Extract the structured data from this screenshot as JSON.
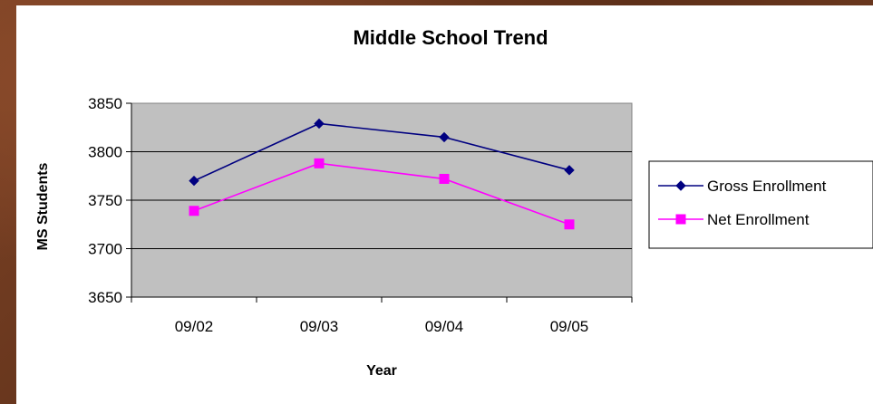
{
  "chart_data": {
    "type": "line",
    "title": "Middle School Trend",
    "xlabel": "Year",
    "ylabel": "MS Students",
    "categories": [
      "09/02",
      "09/03",
      "09/04",
      "09/05"
    ],
    "ylim": [
      3650,
      3850
    ],
    "yticks": [
      3650,
      3700,
      3750,
      3800,
      3850
    ],
    "grid": true,
    "legend_position": "right",
    "plot_background": "#c0c0c0",
    "series": [
      {
        "name": "Gross Enrollment",
        "color": "#000080",
        "marker": "diamond",
        "values": [
          3770,
          3829,
          3815,
          3781
        ]
      },
      {
        "name": "Net Enrollment",
        "color": "#ff00ff",
        "marker": "square",
        "values": [
          3739,
          3788,
          3772,
          3725
        ]
      }
    ]
  }
}
